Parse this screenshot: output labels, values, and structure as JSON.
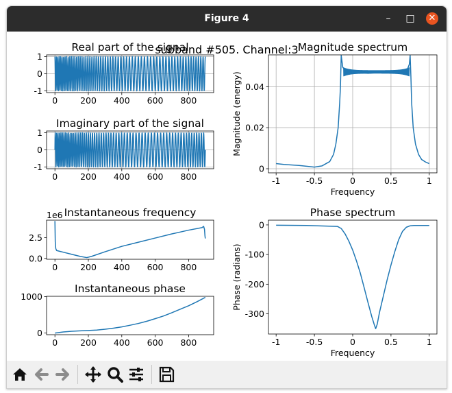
{
  "window": {
    "title": "Figure 4",
    "controls": {
      "minimize": "–",
      "maximize": "□",
      "close": "✕"
    }
  },
  "figure": {
    "suptitle": "subband #505. Channel:3"
  },
  "chart_data": [
    {
      "type": "line",
      "title": "Real part of the signal",
      "xlabel": "",
      "ylabel": "",
      "xlim": [
        -50,
        950
      ],
      "ylim": [
        -1.1,
        1.1
      ],
      "xticks": [
        0,
        200,
        400,
        600,
        800
      ],
      "yticks": [
        -1,
        0,
        1
      ],
      "grid": true,
      "series": [
        {
          "kind": "chirp",
          "samples": 900,
          "amplitude": 1.0,
          "color": "#1f77b4"
        }
      ]
    },
    {
      "type": "line",
      "title": "Imaginary part of the signal",
      "xlabel": "",
      "ylabel": "",
      "xlim": [
        -50,
        950
      ],
      "ylim": [
        -1.1,
        1.1
      ],
      "xticks": [
        0,
        200,
        400,
        600,
        800
      ],
      "yticks": [
        -1,
        0,
        1
      ],
      "grid": true,
      "series": [
        {
          "kind": "chirp",
          "samples": 900,
          "amplitude": 1.0,
          "color": "#1f77b4"
        }
      ]
    },
    {
      "type": "line",
      "title": "Magnitude spectrum",
      "xlabel": "Frequency",
      "ylabel": "Magnitude (energy)",
      "xlim": [
        -1.1,
        1.1
      ],
      "ylim": [
        -0.002,
        0.0555
      ],
      "xticks": [
        -1.0,
        -0.5,
        0.0,
        0.5,
        1.0
      ],
      "yticks": [
        0.0,
        0.02,
        0.04
      ],
      "grid": true,
      "series": [
        {
          "x": [
            -1.0,
            -0.9,
            -0.7,
            -0.5,
            -0.4,
            -0.3,
            -0.25,
            -0.22,
            -0.19,
            -0.17,
            -0.16,
            -0.15,
            -0.13,
            -0.1,
            0.0,
            0.2,
            0.4,
            0.6,
            0.7,
            0.72,
            0.74,
            0.75,
            0.76,
            0.77,
            0.79,
            0.82,
            0.86,
            0.9,
            0.95,
            1.0
          ],
          "y": [
            0.0025,
            0.0021,
            0.0016,
            0.0008,
            0.0014,
            0.0035,
            0.007,
            0.012,
            0.02,
            0.032,
            0.04,
            0.0552,
            0.0495,
            0.048,
            0.047,
            0.0465,
            0.047,
            0.0475,
            0.048,
            0.049,
            0.051,
            0.0552,
            0.045,
            0.032,
            0.02,
            0.012,
            0.007,
            0.0045,
            0.0033,
            0.0025
          ],
          "color": "#1f77b4"
        }
      ]
    },
    {
      "type": "line",
      "title": "Instantaneous frequency",
      "xlabel": "",
      "ylabel": "",
      "offset_text": "1e6",
      "xlim": [
        -50,
        950
      ],
      "ylim": [
        -0.1,
        4.6
      ],
      "xticks": [
        0,
        200,
        400,
        600,
        800
      ],
      "yticks": [
        0.0,
        2.5
      ],
      "ytick_labels": [
        "0.0",
        "2.5"
      ],
      "grid": false,
      "series": [
        {
          "x": [
            0,
            2,
            5,
            10,
            30,
            60,
            100,
            150,
            190,
            220,
            300,
            400,
            500,
            600,
            700,
            800,
            880,
            890,
            895,
            898,
            900
          ],
          "y": [
            4.5,
            2.0,
            1.2,
            0.95,
            0.85,
            0.7,
            0.5,
            0.25,
            0.1,
            0.25,
            0.8,
            1.45,
            1.95,
            2.45,
            2.95,
            3.4,
            3.7,
            3.85,
            3.5,
            2.7,
            2.4
          ],
          "color": "#1f77b4"
        }
      ]
    },
    {
      "type": "line",
      "title": "Phase spectrum",
      "xlabel": "Frequency",
      "ylabel": "Phase (radians)",
      "xlim": [
        -1.1,
        1.1
      ],
      "ylim": [
        -368,
        16
      ],
      "xticks": [
        -1.0,
        -0.5,
        0.0,
        0.5,
        1.0
      ],
      "yticks": [
        0,
        -100,
        -200,
        -300
      ],
      "grid": false,
      "series": [
        {
          "x": [
            -1.0,
            -0.6,
            -0.2,
            -0.15,
            -0.1,
            -0.05,
            0.0,
            0.05,
            0.1,
            0.15,
            0.2,
            0.25,
            0.28,
            0.3,
            0.32,
            0.35,
            0.4,
            0.45,
            0.5,
            0.55,
            0.6,
            0.65,
            0.7,
            0.75,
            0.8,
            0.9,
            1.0
          ],
          "y": [
            -1,
            -2,
            -5,
            -12,
            -30,
            -55,
            -85,
            -122,
            -163,
            -212,
            -262,
            -310,
            -335,
            -350,
            -335,
            -295,
            -240,
            -185,
            -135,
            -90,
            -50,
            -22,
            -8,
            -3,
            -2,
            -2,
            -2
          ],
          "color": "#1f77b4"
        }
      ]
    },
    {
      "type": "line",
      "title": "Instantaneous phase",
      "xlabel": "",
      "ylabel": "",
      "xlim": [
        -50,
        950
      ],
      "ylim": [
        -45,
        1010
      ],
      "xticks": [
        0,
        200,
        400,
        600,
        800
      ],
      "yticks": [
        0,
        1000
      ],
      "grid": false,
      "series": [
        {
          "x": [
            0,
            50,
            100,
            150,
            200,
            250,
            300,
            350,
            400,
            450,
            500,
            550,
            600,
            650,
            700,
            750,
            800,
            850,
            900
          ],
          "y": [
            0,
            30,
            50,
            62,
            70,
            82,
            105,
            135,
            170,
            215,
            265,
            325,
            395,
            470,
            560,
            655,
            750,
            860,
            980
          ],
          "color": "#1f77b4"
        }
      ]
    }
  ],
  "toolbar": {
    "home": "home-icon",
    "back": "back-arrow-icon",
    "forward": "forward-arrow-icon",
    "pan": "pan-icon",
    "zoom": "zoom-icon",
    "configure": "configure-subplots-icon",
    "save": "save-icon"
  }
}
